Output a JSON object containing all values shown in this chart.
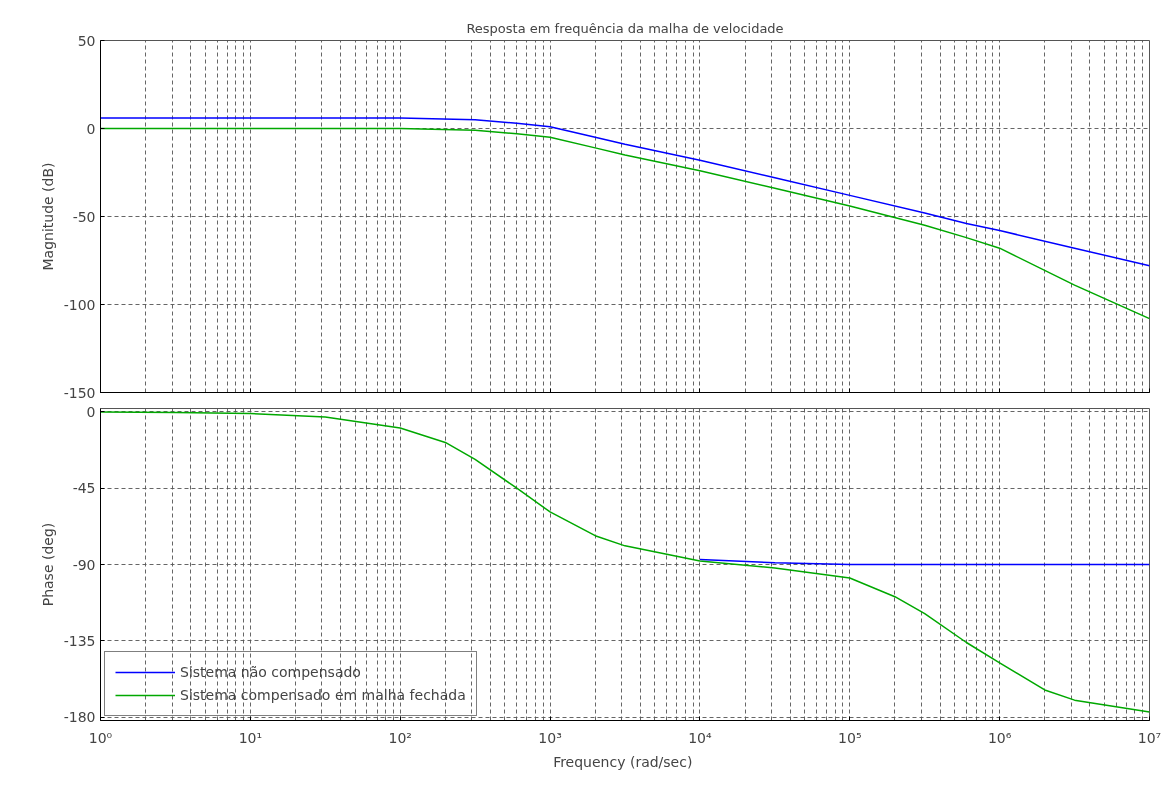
{
  "chart_data": [
    {
      "type": "line",
      "title": "Resposta em frequência da malha de velocidade",
      "ylabel": "Magnitude (dB)",
      "log": "x",
      "grid": true,
      "tick_labels": "y",
      "legend": false,
      "xlim": [
        1,
        10000000
      ],
      "xticks": [
        1,
        10,
        100,
        1000,
        10000,
        100000,
        1000000,
        10000000
      ],
      "ylim": [
        -150,
        50
      ],
      "yticks": [
        -150,
        -100,
        -50,
        0,
        50
      ],
      "x": [
        1,
        10,
        100,
        316,
        600,
        1000,
        2000,
        3162,
        10000,
        31620,
        100000,
        316200,
        600000,
        1000000,
        3162000,
        10000000
      ],
      "series": [
        {
          "color": "#0000ff",
          "values": [
            6,
            6,
            6,
            5,
            3,
            1,
            -5,
            -9,
            -18,
            -28,
            -38,
            -48,
            -54,
            -58,
            -68,
            -78
          ]
        },
        {
          "color": "#00a800",
          "values": [
            0,
            0,
            0,
            -1,
            -3,
            -5,
            -11,
            -15,
            -24,
            -34,
            -44,
            -55,
            -62,
            -68,
            -89,
            -108
          ]
        }
      ]
    },
    {
      "type": "line",
      "xlabel": "Frequency  (rad/sec)",
      "ylabel": "Phase (deg)",
      "log": "x",
      "grid": true,
      "legend": "bottom left",
      "xlim": [
        1,
        10000000
      ],
      "xticks": [
        {
          "value": 1,
          "label": "10⁰"
        },
        {
          "value": 10,
          "label": "10¹"
        },
        {
          "value": 100,
          "label": "10²"
        },
        {
          "value": 1000,
          "label": "10³"
        },
        {
          "value": 10000,
          "label": "10⁴"
        },
        {
          "value": 100000,
          "label": "10⁵"
        },
        {
          "value": 1000000,
          "label": "10⁶"
        },
        {
          "value": 10000000,
          "label": "10⁷"
        }
      ],
      "ylim": [
        -182,
        2
      ],
      "yticks": [
        -180,
        -135,
        -90,
        -45,
        0
      ],
      "x": [
        1,
        3.16,
        10,
        31.6,
        100,
        200,
        316,
        600,
        1000,
        2000,
        3162,
        10000,
        31620,
        100000,
        200000,
        316200,
        600000,
        1000000,
        2000000,
        3162000,
        10000000
      ],
      "series": [
        {
          "name": "Sistema não compensado",
          "color": "#0000ff",
          "values": [
            null,
            null,
            null,
            null,
            null,
            null,
            null,
            null,
            null,
            null,
            null,
            -87,
            -89,
            -90,
            -90,
            -90,
            -90,
            -90,
            -90,
            -90,
            -90
          ]
        },
        {
          "name": "Sistema compensado em malha fechada",
          "color": "#00a800",
          "values": [
            -0.1,
            -0.3,
            -1,
            -3,
            -9.5,
            -18,
            -28,
            -45,
            -59,
            -73,
            -79,
            -88,
            -92,
            -98,
            -109,
            -119,
            -136,
            -148,
            -164,
            -170,
            -177
          ]
        }
      ]
    }
  ]
}
